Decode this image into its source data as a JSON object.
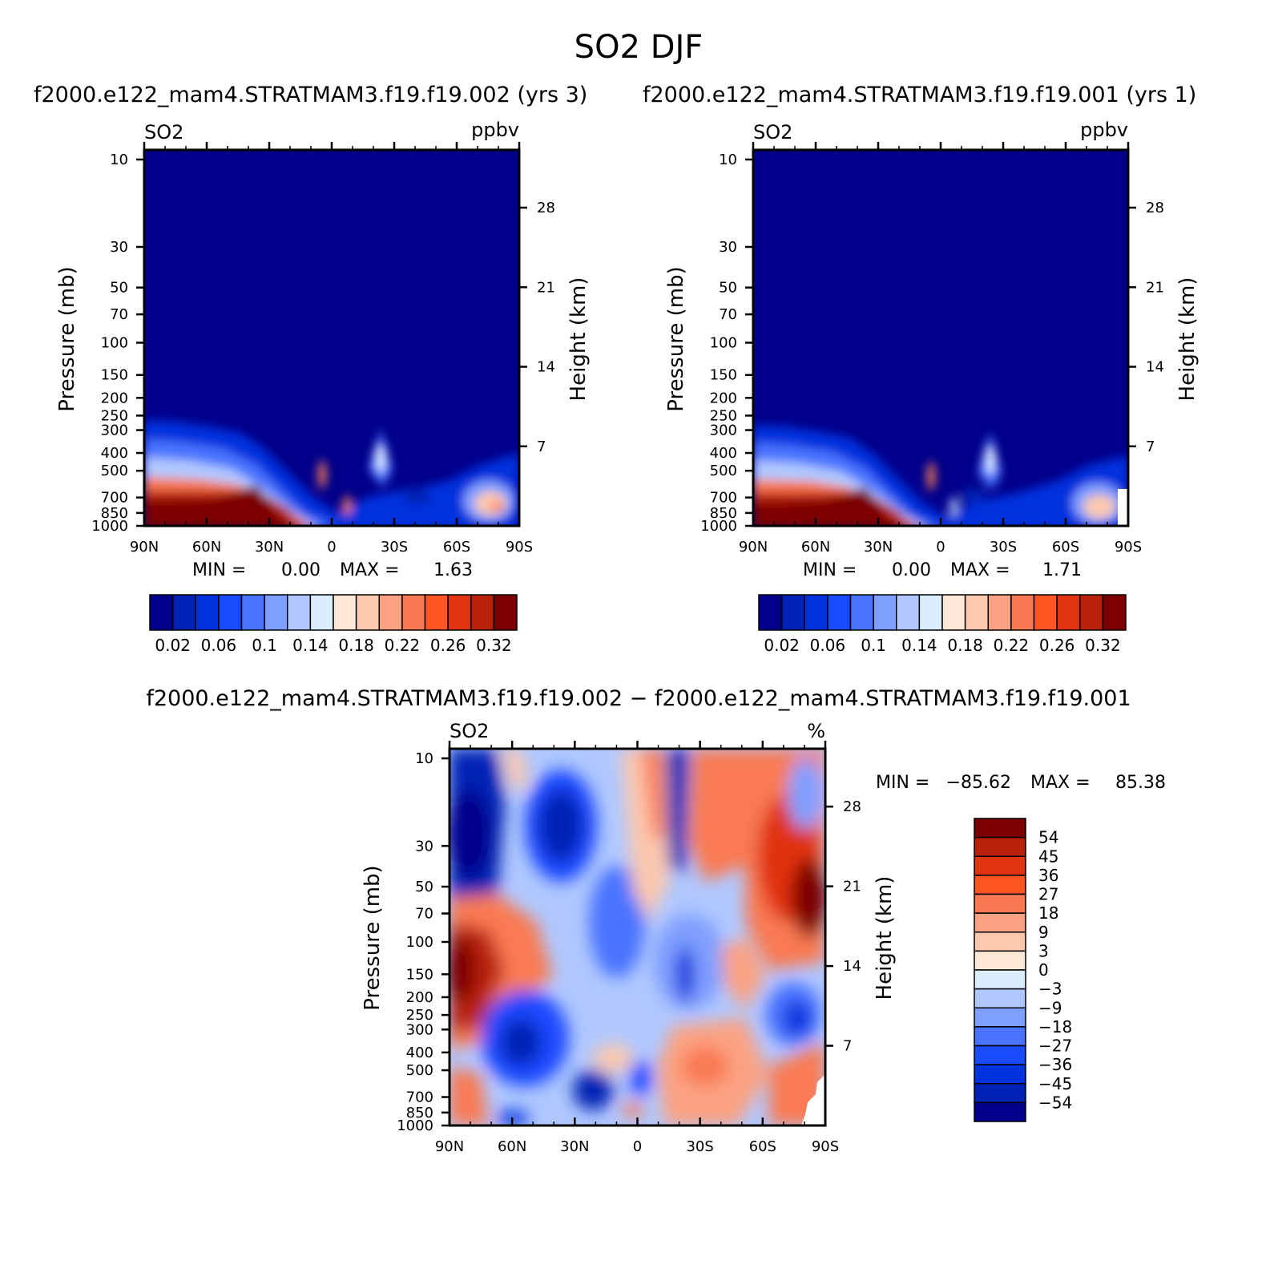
{
  "figure": {
    "title": "SO2 DJF",
    "subtitle_left": "f2000.e122_mam4.STRATMAM3.f19.f19.002 (yrs 3)",
    "subtitle_right": "f2000.e122_mam4.STRATMAM3.f19.f19.001 (yrs 1)",
    "diff_title": "f2000.e122_mam4.STRATMAM3.f19.f19.002 − f2000.e122_mam4.STRATMAM3.f19.f19.001"
  },
  "colors": {
    "seq_colorbar": [
      "#00008b",
      "#0022b4",
      "#0033dd",
      "#1a4aff",
      "#4a73ff",
      "#7f9fff",
      "#b0c8ff",
      "#dcecff",
      "#fde8d8",
      "#fcc8ae",
      "#fba282",
      "#f97a52",
      "#ff5522",
      "#e03310",
      "#b82008",
      "#7d0000"
    ],
    "diff_colorbar": [
      "#00008b",
      "#0022b4",
      "#0033dd",
      "#1a4aff",
      "#4a73ff",
      "#7f9fff",
      "#b0c8ff",
      "#dcecff",
      "#fde8d8",
      "#fcc8ae",
      "#fba282",
      "#f97a52",
      "#ff5522",
      "#e03310",
      "#b82008",
      "#7d0000"
    ],
    "background_field": "#00008b"
  },
  "chart_data": [
    {
      "id": "panel1",
      "type": "heatmap",
      "variable": "SO2",
      "units": "ppbv",
      "x_ticks": [
        "90N",
        "60N",
        "30N",
        "0",
        "30S",
        "60S",
        "90S"
      ],
      "y_ticks": [
        "10",
        "30",
        "50",
        "70",
        "100",
        "150",
        "200",
        "250",
        "300",
        "400",
        "500",
        "700",
        "850",
        "1000"
      ],
      "y_tick_values": [
        10,
        30,
        50,
        70,
        100,
        150,
        200,
        250,
        300,
        400,
        500,
        700,
        850,
        1000
      ],
      "y2_ticks": [
        "28",
        "21",
        "14",
        "7"
      ],
      "y2_tick_values": [
        28,
        21,
        14,
        7
      ],
      "ylabel": "Pressure (mb)",
      "y2label": "Height (km)",
      "stats_min_label": "MIN =",
      "stats_min": "0.00",
      "stats_max_label": "MAX =",
      "stats_max": "1.63",
      "colorbar_labels": [
        "0.02",
        "0.06",
        "0.1",
        "0.14",
        "0.18",
        "0.22",
        "0.26",
        "0.32"
      ],
      "colorbar_levels": [
        0.02,
        0.04,
        0.06,
        0.08,
        0.1,
        0.12,
        0.14,
        0.16,
        0.18,
        0.2,
        0.22,
        0.24,
        0.26,
        0.28,
        0.32
      ]
    },
    {
      "id": "panel2",
      "type": "heatmap",
      "variable": "SO2",
      "units": "ppbv",
      "x_ticks": [
        "90N",
        "60N",
        "30N",
        "0",
        "30S",
        "60S",
        "90S"
      ],
      "y_ticks": [
        "10",
        "30",
        "50",
        "70",
        "100",
        "150",
        "200",
        "250",
        "300",
        "400",
        "500",
        "700",
        "850",
        "1000"
      ],
      "y_tick_values": [
        10,
        30,
        50,
        70,
        100,
        150,
        200,
        250,
        300,
        400,
        500,
        700,
        850,
        1000
      ],
      "y2_ticks": [
        "28",
        "21",
        "14",
        "7"
      ],
      "y2_tick_values": [
        28,
        21,
        14,
        7
      ],
      "ylabel": "Pressure (mb)",
      "y2label": "Height (km)",
      "stats_min_label": "MIN =",
      "stats_min": "0.00",
      "stats_max_label": "MAX =",
      "stats_max": "1.71",
      "colorbar_labels": [
        "0.02",
        "0.06",
        "0.1",
        "0.14",
        "0.18",
        "0.22",
        "0.26",
        "0.32"
      ],
      "colorbar_levels": [
        0.02,
        0.04,
        0.06,
        0.08,
        0.1,
        0.12,
        0.14,
        0.16,
        0.18,
        0.2,
        0.22,
        0.24,
        0.26,
        0.28,
        0.32
      ]
    },
    {
      "id": "diff",
      "type": "heatmap",
      "variable": "SO2",
      "units": "%",
      "x_ticks": [
        "90N",
        "60N",
        "30N",
        "0",
        "30S",
        "60S",
        "90S"
      ],
      "y_ticks": [
        "10",
        "30",
        "50",
        "70",
        "100",
        "150",
        "200",
        "250",
        "300",
        "400",
        "500",
        "700",
        "850",
        "1000"
      ],
      "y_tick_values": [
        10,
        30,
        50,
        70,
        100,
        150,
        200,
        250,
        300,
        400,
        500,
        700,
        850,
        1000
      ],
      "y2_ticks": [
        "28",
        "21",
        "14",
        "7"
      ],
      "y2_tick_values": [
        28,
        21,
        14,
        7
      ],
      "ylabel": "Pressure (mb)",
      "y2label": "Height (km)",
      "stats_min_label": "MIN =",
      "stats_min": "−85.62",
      "stats_max_label": "MAX =",
      "stats_max": "85.38",
      "colorbar_labels": [
        "54",
        "45",
        "36",
        "27",
        "18",
        "9",
        "3",
        "0",
        "−3",
        "−9",
        "−18",
        "−27",
        "−36",
        "−45",
        "−54"
      ],
      "colorbar_levels": [
        54,
        45,
        36,
        27,
        18,
        9,
        3,
        0,
        -3,
        -9,
        -18,
        -27,
        -36,
        -45,
        -54
      ]
    }
  ]
}
